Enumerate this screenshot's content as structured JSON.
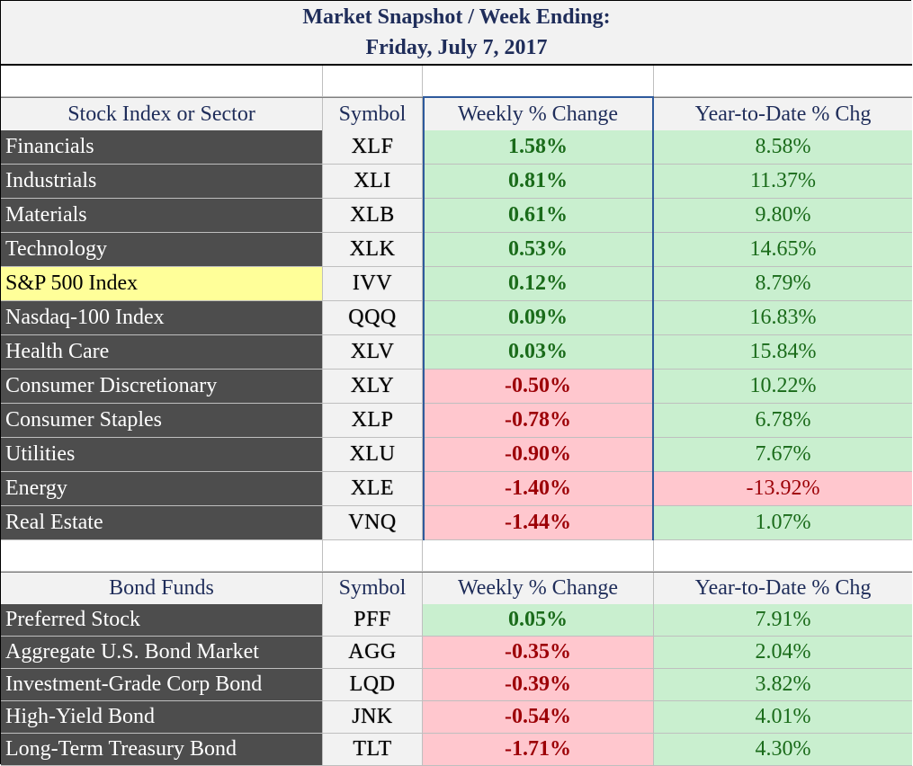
{
  "title": {
    "line1": "Market Snapshot / Week Ending:",
    "line2": "Friday, July 7, 2017"
  },
  "colors": {
    "positive_fill": "#c9efcf",
    "positive_text": "#1a6b1a",
    "negative_fill": "#ffc7ce",
    "negative_text": "#9c0006",
    "highlight_fill": "#ffff99",
    "dark_fill": "#4d4d4d",
    "header_text": "#1f2d5a"
  },
  "stock_table": {
    "headers": [
      "Stock Index or Sector",
      "Symbol",
      "Weekly % Change",
      "Year-to-Date % Chg"
    ],
    "rows": [
      {
        "name": "Financials",
        "symbol": "XLF",
        "weekly": "1.58%",
        "ytd": "8.58%"
      },
      {
        "name": "Industrials",
        "symbol": "XLI",
        "weekly": "0.81%",
        "ytd": "11.37%"
      },
      {
        "name": "Materials",
        "symbol": "XLB",
        "weekly": "0.61%",
        "ytd": "9.80%"
      },
      {
        "name": "Technology",
        "symbol": "XLK",
        "weekly": "0.53%",
        "ytd": "14.65%"
      },
      {
        "name": "S&P 500 Index",
        "symbol": "IVV",
        "weekly": "0.12%",
        "ytd": "8.79%",
        "highlight": true
      },
      {
        "name": "Nasdaq-100 Index",
        "symbol": "QQQ",
        "weekly": "0.09%",
        "ytd": "16.83%"
      },
      {
        "name": "Health Care",
        "symbol": "XLV",
        "weekly": "0.03%",
        "ytd": "15.84%"
      },
      {
        "name": "Consumer Discretionary",
        "symbol": "XLY",
        "weekly": "-0.50%",
        "ytd": "10.22%"
      },
      {
        "name": "Consumer Staples",
        "symbol": "XLP",
        "weekly": "-0.78%",
        "ytd": "6.78%"
      },
      {
        "name": "Utilities",
        "symbol": "XLU",
        "weekly": "-0.90%",
        "ytd": "7.67%"
      },
      {
        "name": "Energy",
        "symbol": "XLE",
        "weekly": "-1.40%",
        "ytd": "-13.92%"
      },
      {
        "name": "Real Estate",
        "symbol": "VNQ",
        "weekly": "-1.44%",
        "ytd": "1.07%"
      }
    ]
  },
  "bond_table": {
    "headers": [
      "Bond Funds",
      "Symbol",
      "Weekly % Change",
      "Year-to-Date % Chg"
    ],
    "rows": [
      {
        "name": "Preferred Stock",
        "symbol": "PFF",
        "weekly": "0.05%",
        "ytd": "7.91%"
      },
      {
        "name": "Aggregate U.S. Bond Market",
        "symbol": "AGG",
        "weekly": "-0.35%",
        "ytd": "2.04%"
      },
      {
        "name": "Investment-Grade Corp Bond",
        "symbol": "LQD",
        "weekly": "-0.39%",
        "ytd": "3.82%"
      },
      {
        "name": "High-Yield Bond",
        "symbol": "JNK",
        "weekly": "-0.54%",
        "ytd": "4.01%"
      },
      {
        "name": "Long-Term Treasury Bond",
        "symbol": "TLT",
        "weekly": "-1.71%",
        "ytd": "4.30%"
      }
    ]
  }
}
